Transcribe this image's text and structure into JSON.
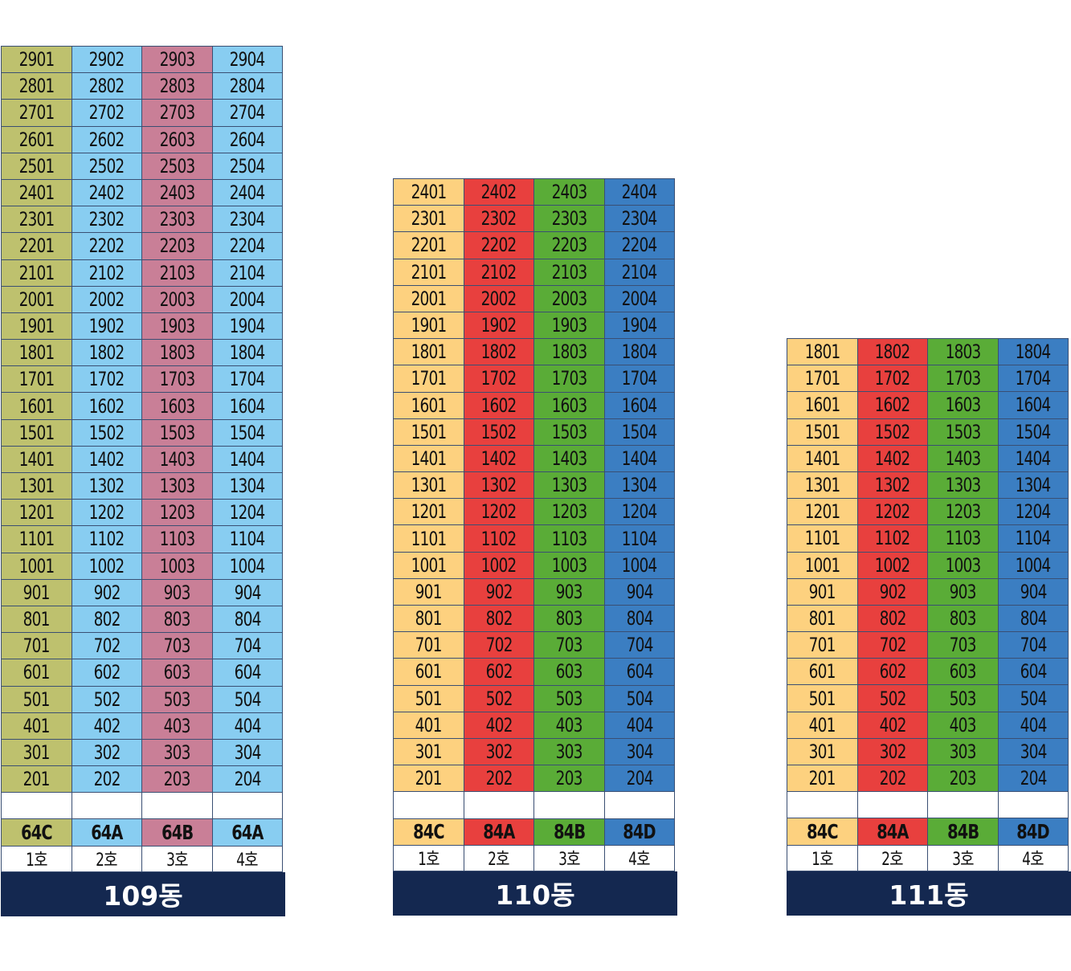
{
  "colors": {
    "b109": [
      "#bec16e",
      "#88cdf1",
      "#c97f97",
      "#88cdf1"
    ],
    "b110": [
      "#fdd17f",
      "#e8403e",
      "#5aac37",
      "#3b7ec2"
    ],
    "b111": [
      "#fdd17f",
      "#e8403e",
      "#5aac37",
      "#3b7ec2"
    ],
    "label_bg": "#142850"
  },
  "buildings": [
    {
      "id": "b109",
      "name": "109동",
      "floors": [
        29,
        28,
        27,
        26,
        25,
        24,
        23,
        22,
        21,
        20,
        19,
        18,
        17,
        16,
        15,
        14,
        13,
        12,
        11,
        10,
        9,
        8,
        7,
        6,
        5,
        4,
        3,
        2
      ],
      "types": [
        "64C",
        "64A",
        "64B",
        "64A"
      ],
      "units": [
        "1호",
        "2호",
        "3호",
        "4호"
      ]
    },
    {
      "id": "b110",
      "name": "110동",
      "floors": [
        24,
        23,
        22,
        21,
        20,
        19,
        18,
        17,
        16,
        15,
        14,
        13,
        12,
        11,
        10,
        9,
        8,
        7,
        6,
        5,
        4,
        3,
        2
      ],
      "types": [
        "84C",
        "84A",
        "84B",
        "84D"
      ],
      "units": [
        "1호",
        "2호",
        "3호",
        "4호"
      ]
    },
    {
      "id": "b111",
      "name": "111동",
      "floors": [
        18,
        17,
        16,
        15,
        14,
        13,
        12,
        11,
        10,
        9,
        8,
        7,
        6,
        5,
        4,
        3,
        2
      ],
      "types": [
        "84C",
        "84A",
        "84B",
        "84D"
      ],
      "units": [
        "1호",
        "2호",
        "3호",
        "4호"
      ]
    }
  ]
}
